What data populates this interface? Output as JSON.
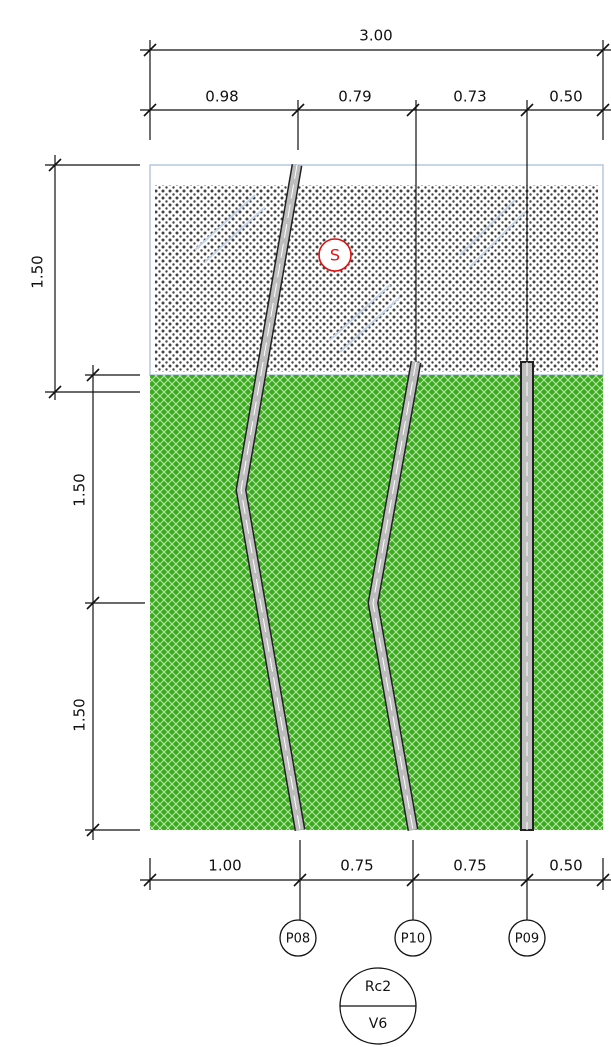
{
  "dimensions": {
    "top_total": "3.00",
    "top": [
      "0.98",
      "0.79",
      "0.73",
      "0.50"
    ],
    "bottom": [
      "1.00",
      "0.75",
      "0.75",
      "0.50"
    ],
    "left": [
      "1.50",
      "1.50",
      "1.50"
    ]
  },
  "soil_marker": "S",
  "piles": [
    "P08",
    "P10",
    "P09"
  ],
  "section": {
    "top": "Rc2",
    "bottom": "V6"
  }
}
